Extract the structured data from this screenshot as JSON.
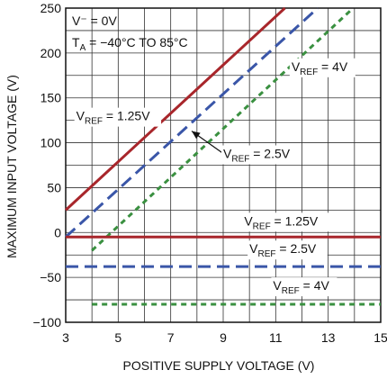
{
  "chart_data": {
    "type": "line",
    "xlabel": "POSITIVE SUPPLY VOLTAGE (V)",
    "ylabel": "MAXIMUM INPUT VOLTAGE (V)",
    "xlim": [
      3,
      15
    ],
    "ylim": [
      -100,
      250
    ],
    "x_ticks": [
      "3",
      "5",
      "7",
      "9",
      "11",
      "13",
      "15"
    ],
    "y_ticks": [
      "250",
      "200",
      "150",
      "100",
      "50",
      "0",
      "−50",
      "−100"
    ],
    "grid": true,
    "conditions": {
      "line1": "V⁻ = 0V",
      "line2_prefix": "T",
      "line2_sub": "A",
      "line2_rest": " = −40°C TO 85°C"
    },
    "colors": {
      "vref_1_25": "#a8262b",
      "vref_2_5": "#3a56a8",
      "vref_4": "#3a9040"
    },
    "series": [
      {
        "group": "upper",
        "ref": "1.25V",
        "color": "#a8262b",
        "dash": "solid",
        "x": [
          3,
          11.35
        ],
        "y": [
          25,
          250
        ]
      },
      {
        "group": "upper",
        "ref": "2.5V",
        "color": "#3a56a8",
        "dash": "long",
        "x": [
          3,
          12.6
        ],
        "y": [
          -5,
          250
        ]
      },
      {
        "group": "upper",
        "ref": "4V",
        "color": "#3a9040",
        "dash": "short",
        "x": [
          4,
          13.95
        ],
        "y": [
          -20,
          250
        ]
      },
      {
        "group": "lower",
        "ref": "1.25V",
        "color": "#a8262b",
        "dash": "solid",
        "x": [
          3,
          15
        ],
        "y": [
          -5,
          -5
        ]
      },
      {
        "group": "lower",
        "ref": "2.5V",
        "color": "#3a56a8",
        "dash": "long",
        "x": [
          3,
          15
        ],
        "y": [
          -38,
          -38
        ]
      },
      {
        "group": "lower",
        "ref": "4V",
        "color": "#3a9040",
        "dash": "short",
        "x": [
          4,
          15
        ],
        "y": [
          -80,
          -80
        ]
      }
    ],
    "labels": [
      {
        "prefix": "V",
        "sub": "REF",
        "rest": " = 1.25V",
        "x": 3.4,
        "y": 125
      },
      {
        "prefix": "V",
        "sub": "REF",
        "rest": " = 2.5V",
        "x": 9.0,
        "y": 83
      },
      {
        "prefix": "V",
        "sub": "REF",
        "rest": " = 4V",
        "x": 11.6,
        "y": 180
      },
      {
        "prefix": "V",
        "sub": "REF",
        "rest": " = 1.25V",
        "x": 9.8,
        "y": 8
      },
      {
        "prefix": "V",
        "sub": "REF",
        "rest": " = 2.5V",
        "x": 10.0,
        "y": -23
      },
      {
        "prefix": "V",
        "sub": "REF",
        "rest": " = 4V",
        "x": 10.9,
        "y": -64
      }
    ],
    "arrow": {
      "from": [
        9.0,
        88
      ],
      "to": [
        7.8,
        113
      ]
    }
  }
}
